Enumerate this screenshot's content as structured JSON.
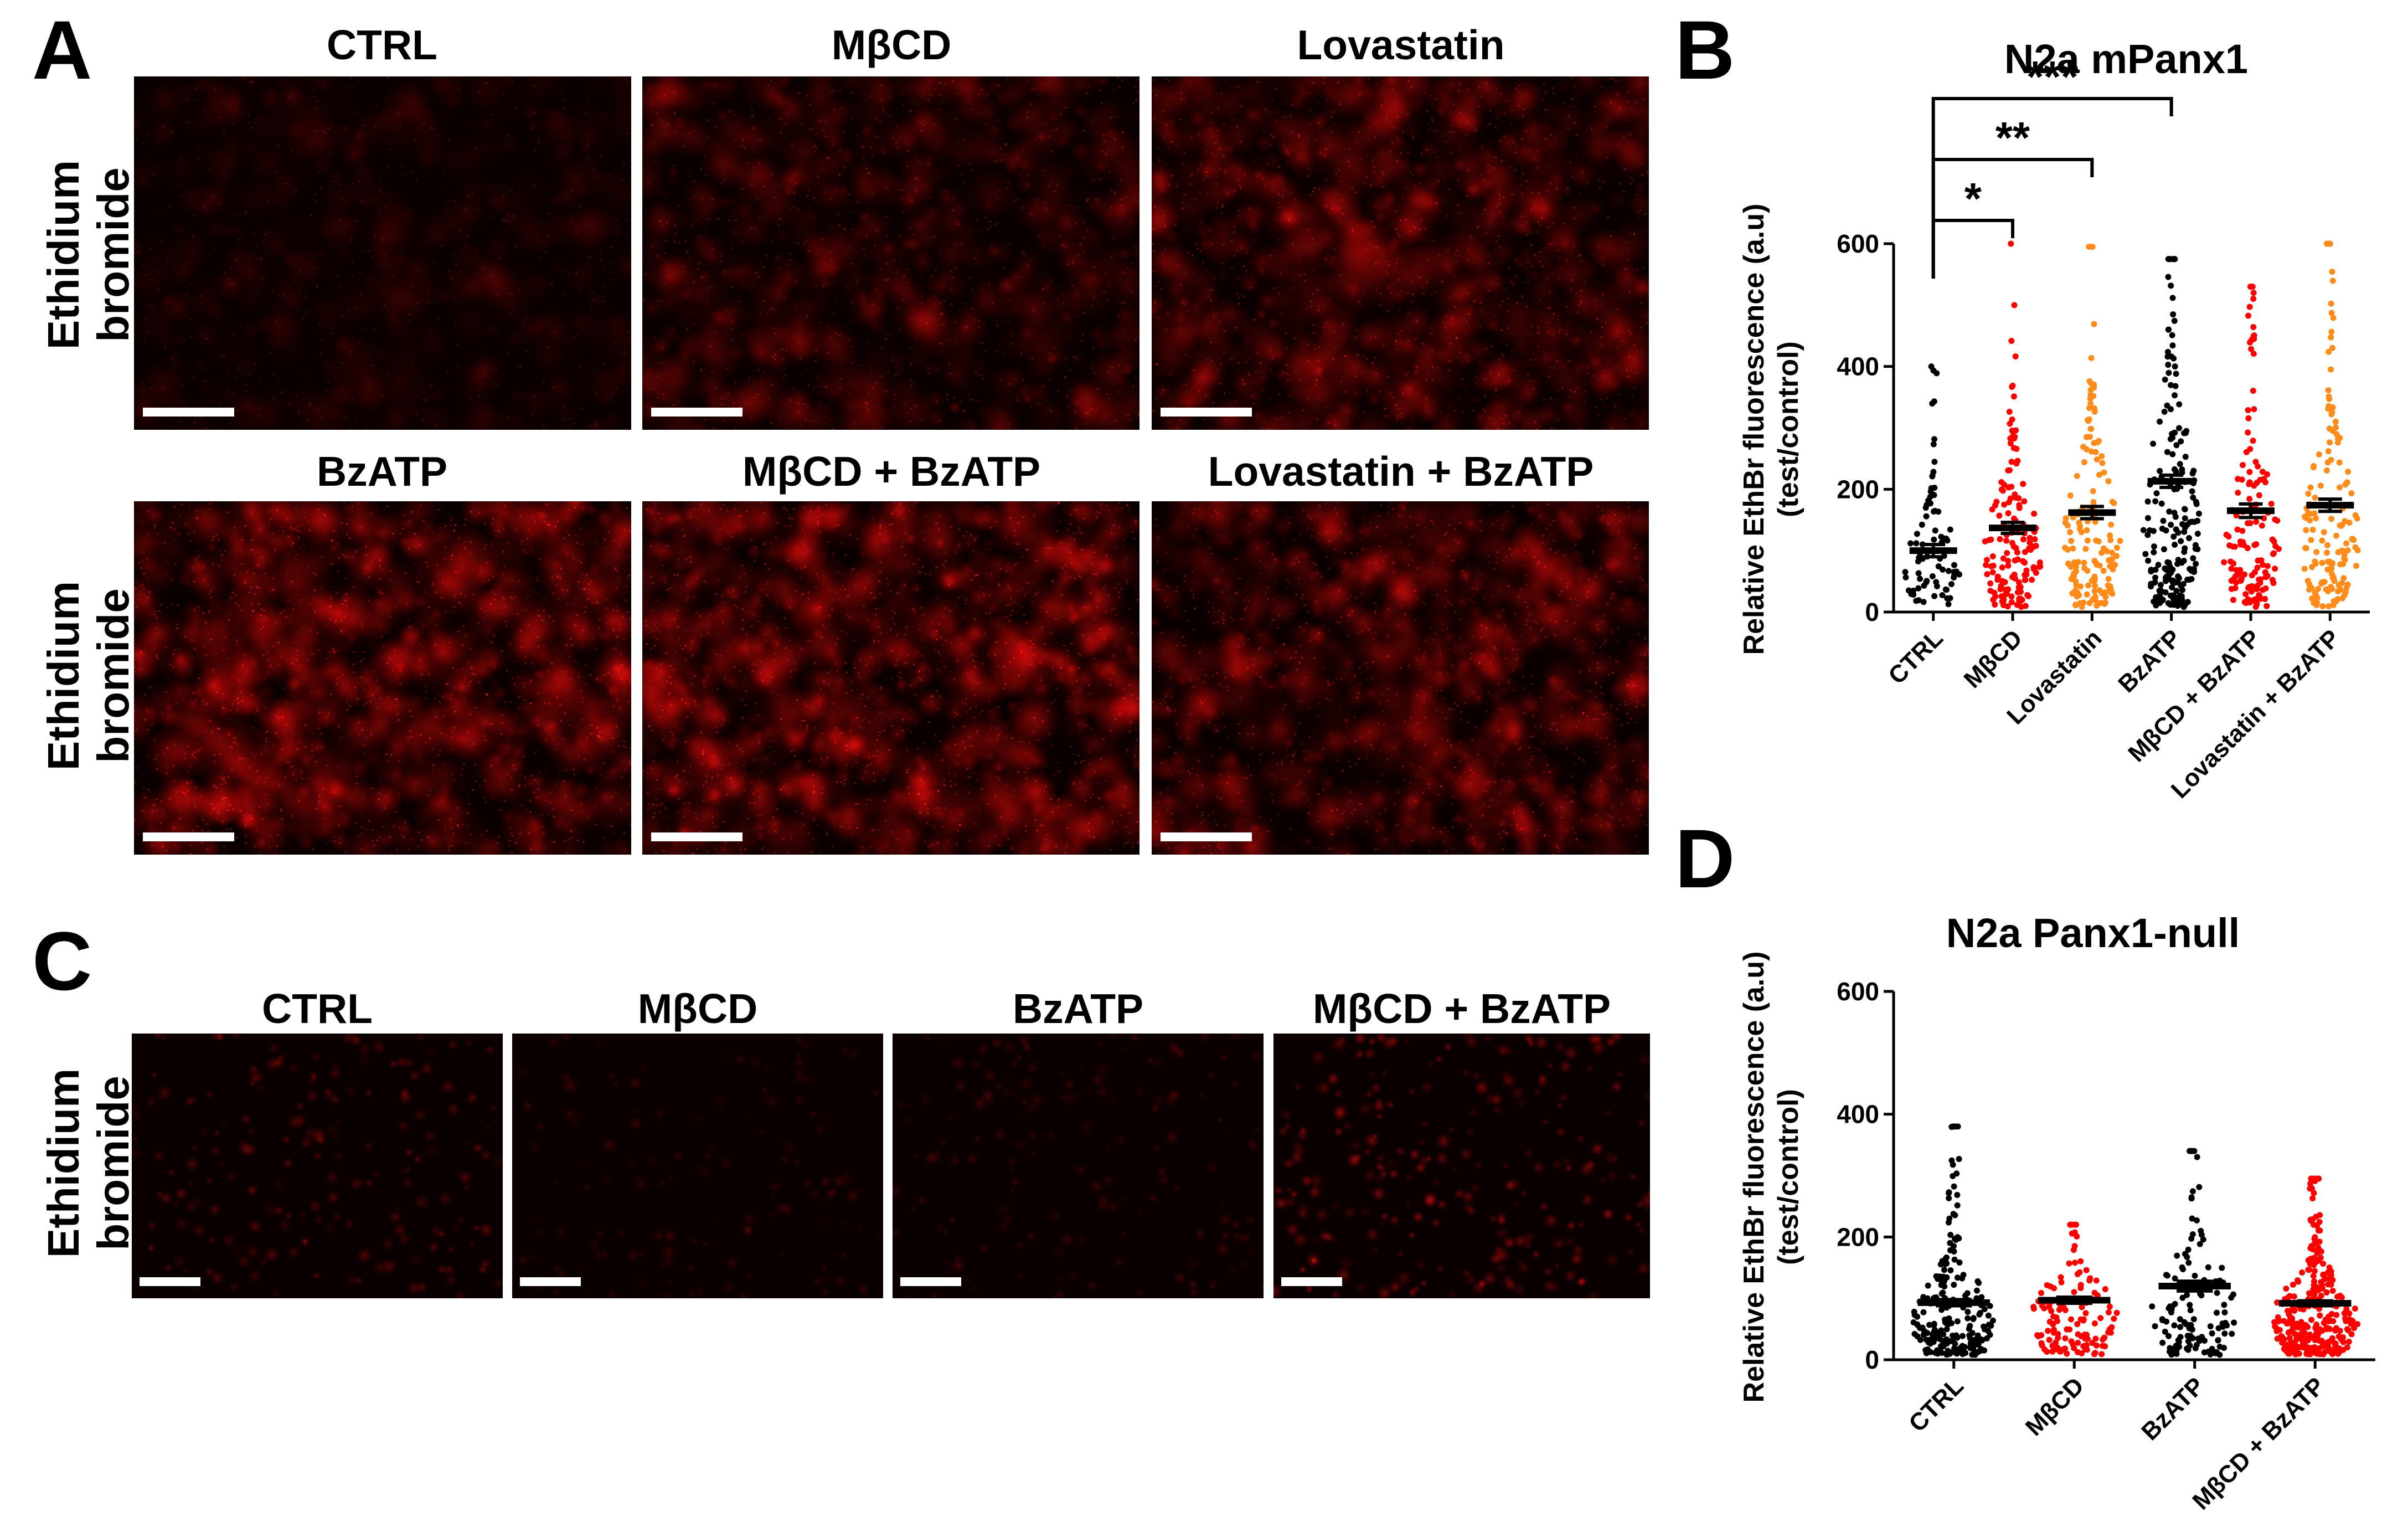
{
  "panels": {
    "A": {
      "letter": "A",
      "row_label": [
        "Ethidium",
        "bromide"
      ],
      "top_titles": [
        "CTRL",
        "MβCD",
        "Lovastatin"
      ],
      "bottom_titles": [
        "BzATP",
        "MβCD + BzATP",
        "Lovastatin + BzATP"
      ]
    },
    "B": {
      "letter": "B"
    },
    "C": {
      "letter": "C",
      "row_label": [
        "Ethidium",
        "bromide"
      ],
      "titles": [
        "CTRL",
        "MβCD",
        "BzATP",
        "MβCD + BzATP"
      ]
    },
    "D": {
      "letter": "D"
    }
  },
  "colors": {
    "black": "#000000",
    "red": "#ff0000",
    "orange": "#ff8c1a",
    "micro_red": "#ff1a1a"
  },
  "chart_data": [
    {
      "id": "B",
      "type": "scatter",
      "title": "N2a  mPanx1",
      "ylabel": [
        "Relative EthBr fluorescence (a.u)",
        "(test/control)"
      ],
      "ylim": [
        0,
        600
      ],
      "yticks": [
        0,
        200,
        400,
        600
      ],
      "categories": [
        "CTRL",
        "MβCD",
        "Lovastatin",
        "BzATP",
        "MβCD + BzATP",
        "Lovastatin + BzATP"
      ],
      "series": [
        {
          "category": "CTRL",
          "color": "#000000",
          "n": 80,
          "mean": 100,
          "sem": 10,
          "max": 400
        },
        {
          "category": "MβCD",
          "color": "#ff0000",
          "n": 150,
          "mean": 137,
          "sem": 9,
          "max": 600
        },
        {
          "category": "Lovastatin",
          "color": "#ff8c1a",
          "n": 150,
          "mean": 162,
          "sem": 10,
          "max": 595
        },
        {
          "category": "BzATP",
          "color": "#000000",
          "n": 200,
          "mean": 213,
          "sem": 10,
          "max": 575
        },
        {
          "category": "MβCD + BzATP",
          "color": "#ff0000",
          "n": 140,
          "mean": 165,
          "sem": 11,
          "max": 530
        },
        {
          "category": "Lovastatin + BzATP",
          "color": "#ff8c1a",
          "n": 150,
          "mean": 174,
          "sem": 10,
          "max": 600
        }
      ],
      "significance": [
        {
          "from": "CTRL",
          "to": "MβCD",
          "label": "*"
        },
        {
          "from": "CTRL",
          "to": "Lovastatin",
          "label": "**"
        },
        {
          "from": "CTRL",
          "to": "BzATP",
          "label": "***"
        }
      ]
    },
    {
      "id": "D",
      "type": "scatter",
      "title": "N2a Panx1-null",
      "ylabel": [
        "Relative EthBr fluorescence (a.u)",
        "(test/control)"
      ],
      "ylim": [
        0,
        600
      ],
      "yticks": [
        0,
        200,
        400,
        600
      ],
      "categories": [
        "CTRL",
        "MβCD",
        "BzATP",
        "MβCD + BzATP"
      ],
      "series": [
        {
          "category": "CTRL",
          "color": "#000000",
          "n": 220,
          "mean": 93,
          "sem": 5,
          "max": 380
        },
        {
          "category": "MβCD",
          "color": "#ff0000",
          "n": 130,
          "mean": 97,
          "sem": 5,
          "max": 220
        },
        {
          "category": "BzATP",
          "color": "#000000",
          "n": 120,
          "mean": 120,
          "sem": 8,
          "max": 340
        },
        {
          "category": "MβCD + BzATP",
          "color": "#ff0000",
          "n": 300,
          "mean": 92,
          "sem": 4,
          "max": 295
        }
      ]
    }
  ]
}
